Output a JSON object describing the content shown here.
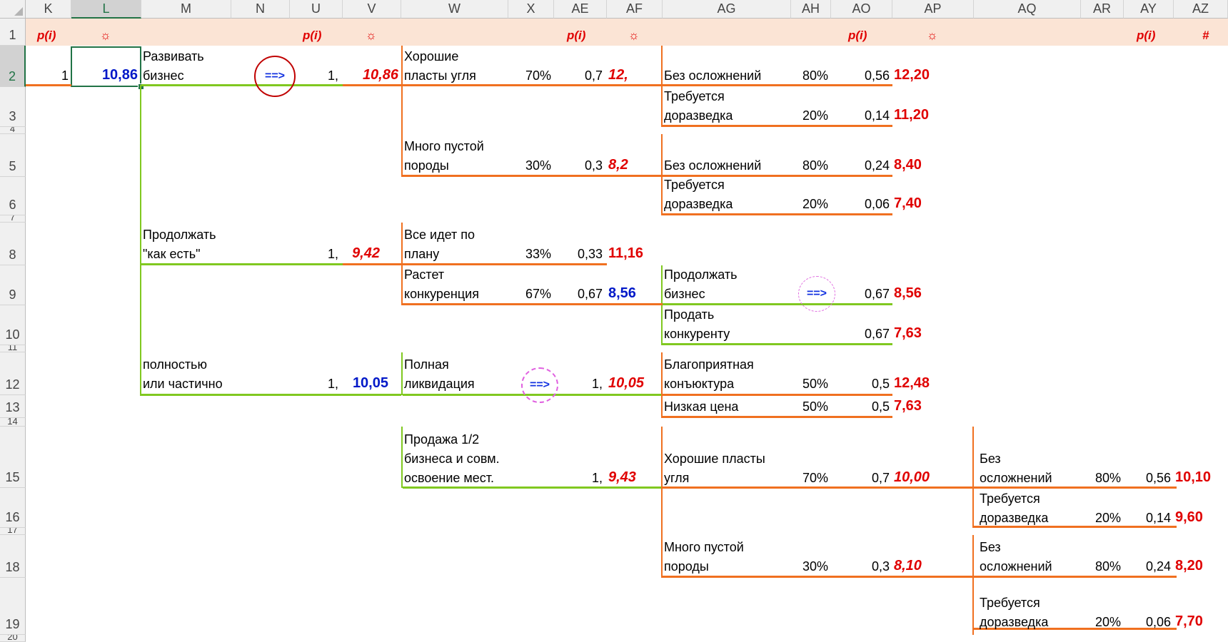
{
  "columns": [
    "K",
    "L",
    "M",
    "N",
    "U",
    "V",
    "W",
    "X",
    "AE",
    "AF",
    "AG",
    "AH",
    "AO",
    "AP",
    "AQ",
    "AR",
    "AY",
    "AZ"
  ],
  "selected_column": "L",
  "rows": [
    "1",
    "2",
    "3",
    "4",
    "5",
    "6",
    "7",
    "8",
    "9",
    "10",
    "11",
    "12",
    "13",
    "14",
    "15",
    "16",
    "17",
    "18",
    "19",
    "20"
  ],
  "selected_row": "2",
  "header_row": {
    "p1": "p(i)",
    "s1": "☼",
    "p2": "p(i)",
    "s2": "☼",
    "p3": "p(i)",
    "s3": "☼",
    "p4": "p(i)",
    "s4": "☼",
    "p5": "p(i)",
    "hash": "#"
  },
  "cells": {
    "k2": "1",
    "l2": "10,86",
    "m2a": "Развивать",
    "m2b": "бизнес",
    "arrow1": "==>",
    "u2": "1,",
    "v2": "10,86",
    "w2a": "Хорошие",
    "w2b": "пласты угля",
    "x2": "70%",
    "ae2": "0,7",
    "af2": "12,",
    "ag2": "Без осложнений",
    "ah2": "80%",
    "ao2": "0,56",
    "ap2": "12,20",
    "ag3a": "Требуется",
    "ag3b": "доразведка",
    "ah3": "20%",
    "ao3": "0,14",
    "ap3": "11,20",
    "w5a": "Много пустой",
    "w5b": "породы",
    "x5": "30%",
    "ae5": "0,3",
    "af5": "8,2",
    "ag5": "Без осложнений",
    "ah5": "80%",
    "ao5": "0,24",
    "ap5": "8,40",
    "ag6a": "Требуется",
    "ag6b": "доразведка",
    "ah6": "20%",
    "ao6": "0,06",
    "ap6": "7,40",
    "m8a": "Продолжать",
    "m8b": "\"как есть\"",
    "u8": "1,",
    "v8": "9,42",
    "w8a": "Все идет по",
    "w8b": "плану",
    "x8": "33%",
    "ae8": "0,33",
    "af8": "11,16",
    "w9a": "Растет",
    "w9b": "конкуренция",
    "x9": "67%",
    "ae9": "0,67",
    "af9": "8,56",
    "ag9a": "Продолжать",
    "ag9b": "бизнес",
    "arrow2": "==>",
    "ao9": "0,67",
    "ap9": "8,56",
    "ag10a": "Продать",
    "ag10b": "конкуренту",
    "ao10": "0,67",
    "ap10": "7,63",
    "m12a": "полностью",
    "m12b": "или частично",
    "u12": "1,",
    "v12": "10,05",
    "w12a": "Полная",
    "w12b": "ликвидация",
    "arrow3": "==>",
    "ae12": "1,",
    "af12": "10,05",
    "ag12a": "Благоприятная",
    "ag12b": "конъюктура",
    "ah12": "50%",
    "ao12": "0,5",
    "ap12": "12,48",
    "ag13": "Низкая цена",
    "ah13": "50%",
    "ao13": "0,5",
    "ap13": "7,63",
    "w15a": "Продажа 1/2",
    "w15b": "бизнеса и совм.",
    "w15c": "освоение мест.",
    "ae15": "1,",
    "af15": "9,43",
    "ag15a": "Хорошие пласты",
    "ag15b": "угля",
    "ah15": "70%",
    "ao15": "0,7",
    "ap15": "10,00",
    "aq15a": "Без",
    "aq15b": "осложнений",
    "ar15": "80%",
    "ay15": "0,56",
    "az15": "10,10",
    "aq16a": "Требуется",
    "aq16b": "доразведка",
    "ar16": "20%",
    "ay16": "0,14",
    "az16": "9,60",
    "ag18a": "Много пустой",
    "ag18b": "породы",
    "ah18": "30%",
    "ao18": "0,3",
    "ap18": "8,10",
    "aq18a": "Без",
    "aq18b": "осложнений",
    "ar18": "80%",
    "ay18": "0,24",
    "az18": "8,20",
    "aq19a": "Требуется",
    "aq19b": "доразведка",
    "ar19": "20%",
    "ay19": "0,06",
    "az19": "7,70"
  },
  "colors": {
    "orange_line": "#f07020",
    "green_line": "#80c820",
    "red_value": "#e00000",
    "blue_value": "#0018c8",
    "header_fill": "#fbe4d5"
  }
}
